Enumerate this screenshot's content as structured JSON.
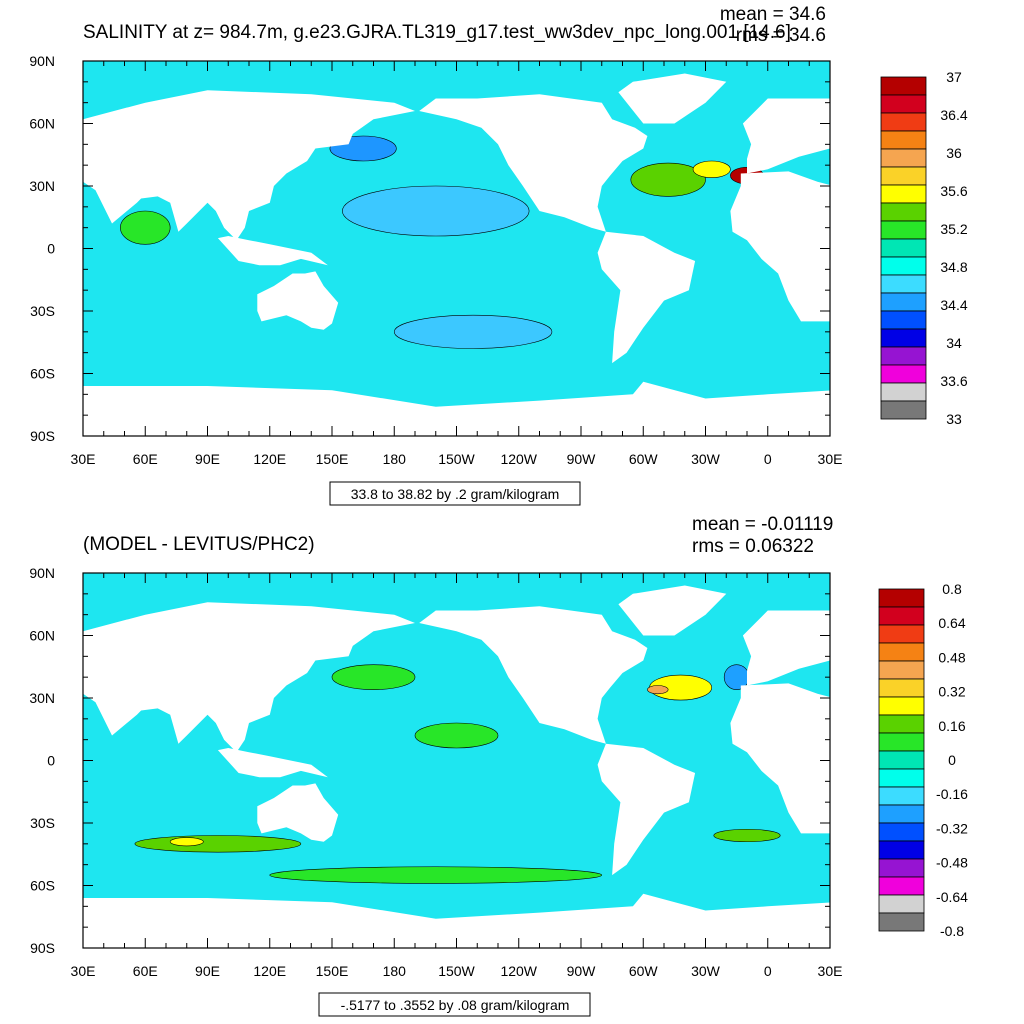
{
  "chart_data": [
    {
      "type": "heatmap",
      "title": "SALINITY at z= 984.7m, g.e23.GJRA.TL319_g17.test_ww3dev_npc_long.001 [14.6]",
      "stats": {
        "mean": "mean = 34.6",
        "rms": "rms = 34.6"
      },
      "x_ticks": [
        "30E",
        "60E",
        "90E",
        "120E",
        "150E",
        "180",
        "150W",
        "120W",
        "90W",
        "60W",
        "30W",
        "0",
        "30E"
      ],
      "y_ticks": [
        "90N",
        "60N",
        "30N",
        "0",
        "30S",
        "60S",
        "90S"
      ],
      "xlim": [
        30,
        390
      ],
      "ylim": [
        -90,
        90
      ],
      "contour_info": "33.8 to 38.82 by .2 gram/kilogram",
      "colorbar": {
        "labels": [
          "37",
          "36.4",
          "36",
          "35.6",
          "35.2",
          "34.8",
          "34.4",
          "34",
          "33.6",
          "33"
        ],
        "colors": [
          "#b40000",
          "#d2001e",
          "#f03c14",
          "#f58214",
          "#f5a550",
          "#fad228",
          "#ffff00",
          "#5ad200",
          "#28e628",
          "#00e6b4",
          "#00ffeb",
          "#3cdcff",
          "#1ea0ff",
          "#0050ff",
          "#0000e6",
          "#9614d2",
          "#f000dc",
          "#d2d2d2",
          "#787878"
        ]
      },
      "fields": {
        "background": "#1ee6f0",
        "patches": [
          {
            "lon": 200,
            "lat": 18,
            "rx": 45,
            "ry": 12,
            "color": "#3cc8ff"
          },
          {
            "lon": 218,
            "lat": -40,
            "rx": 38,
            "ry": 8,
            "color": "#3cc8ff"
          },
          {
            "lon": 165,
            "lat": 48,
            "rx": 16,
            "ry": 6,
            "color": "#1e96ff"
          },
          {
            "lon": 312,
            "lat": 33,
            "rx": 18,
            "ry": 8,
            "color": "#5ad200"
          },
          {
            "lon": 333,
            "lat": 38,
            "rx": 9,
            "ry": 4,
            "color": "#ffff00"
          },
          {
            "lon": 60,
            "lat": 10,
            "rx": 12,
            "ry": 8,
            "color": "#28e628"
          },
          {
            "lon": 350,
            "lat": 35,
            "rx": 8,
            "ry": 4,
            "color": "#b40000"
          }
        ]
      }
    },
    {
      "type": "heatmap",
      "title": "(MODEL - LEVITUS/PHC2)",
      "stats": {
        "mean": "mean = -0.01119",
        "rms": "rms = 0.06322"
      },
      "x_ticks": [
        "30E",
        "60E",
        "90E",
        "120E",
        "150E",
        "180",
        "150W",
        "120W",
        "90W",
        "60W",
        "30W",
        "0",
        "30E"
      ],
      "y_ticks": [
        "90N",
        "60N",
        "30N",
        "0",
        "30S",
        "60S",
        "90S"
      ],
      "xlim": [
        30,
        390
      ],
      "ylim": [
        -90,
        90
      ],
      "contour_info": "-.5177 to .3552 by .08 gram/kilogram",
      "colorbar": {
        "labels": [
          "0.8",
          "0.64",
          "0.48",
          "0.32",
          "0.16",
          "0",
          "-0.16",
          "-0.32",
          "-0.48",
          "-0.64",
          "-0.8"
        ],
        "colors": [
          "#b40000",
          "#d2001e",
          "#f03c14",
          "#f58214",
          "#f5a550",
          "#fad228",
          "#ffff00",
          "#5ad200",
          "#28e628",
          "#00e6b4",
          "#00ffeb",
          "#3cdcff",
          "#1ea0ff",
          "#0050ff",
          "#0000e6",
          "#9614d2",
          "#f000dc",
          "#d2d2d2",
          "#787878"
        ]
      },
      "fields": {
        "background": "#1ee6f0",
        "patches": [
          {
            "lon": 170,
            "lat": 40,
            "rx": 20,
            "ry": 6,
            "color": "#28e628"
          },
          {
            "lon": 210,
            "lat": 12,
            "rx": 20,
            "ry": 6,
            "color": "#28e628"
          },
          {
            "lon": 95,
            "lat": -40,
            "rx": 40,
            "ry": 4,
            "color": "#5ad200"
          },
          {
            "lon": 80,
            "lat": -39,
            "rx": 8,
            "ry": 2,
            "color": "#ffff00"
          },
          {
            "lon": 318,
            "lat": 35,
            "rx": 15,
            "ry": 6,
            "color": "#ffff00"
          },
          {
            "lon": 307,
            "lat": 34,
            "rx": 5,
            "ry": 2,
            "color": "#f5a550"
          },
          {
            "lon": 345,
            "lat": 40,
            "rx": 6,
            "ry": 6,
            "color": "#1ea0ff"
          },
          {
            "lon": 350,
            "lat": -36,
            "rx": 16,
            "ry": 3,
            "color": "#5ad200"
          },
          {
            "lon": 200,
            "lat": -55,
            "rx": 80,
            "ry": 4,
            "color": "#28e628"
          }
        ]
      }
    }
  ]
}
